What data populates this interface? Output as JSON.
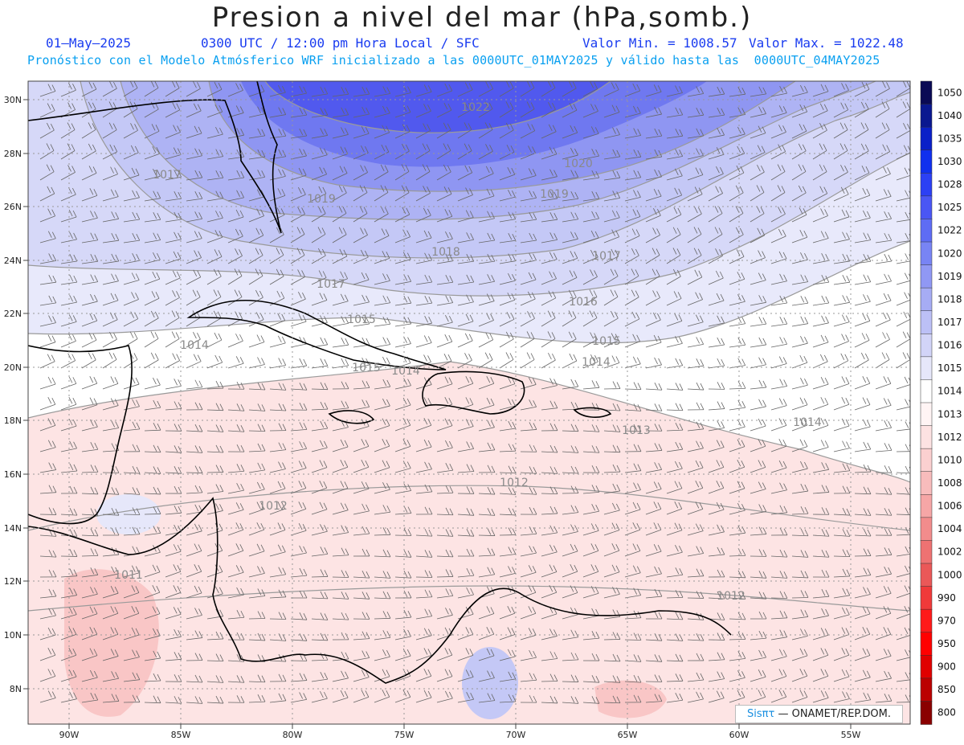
{
  "header": {
    "title": "Presion a nivel del mar (hPa,somb.)",
    "date": "01—May—2025",
    "time": "0300 UTC / 12:00 pm Hora Local / SFC",
    "min_label": "Valor Min. = 1008.57",
    "max_label": "Valor Max. = 1022.48",
    "model_info": "Pronóstico con el Modelo Atmósferico WRF inicializado a las 0000UTC_01MAY2025 y válido hasta las  0000UTC_04MAY2025"
  },
  "map": {
    "lon_labels": [
      "90W",
      "85W",
      "80W",
      "75W",
      "70W",
      "65W",
      "60W",
      "55W"
    ],
    "lat_labels": [
      "30N",
      "28N",
      "26N",
      "24N",
      "22N",
      "20N",
      "18N",
      "16N",
      "14N",
      "12N",
      "10N",
      "8N"
    ],
    "isobar_labels": [
      "1022",
      "1020",
      "1019",
      "1019",
      "1018",
      "1017",
      "1017",
      "1017",
      "1016",
      "1015",
      "1015",
      "1014",
      "1014",
      "1014",
      "1015",
      "1014",
      "1013",
      "1012",
      "1012",
      "1012",
      "1011"
    ]
  },
  "colorbar": {
    "levels": [
      "1050",
      "1040",
      "1035",
      "1030",
      "1028",
      "1025",
      "1022",
      "1020",
      "1019",
      "1018",
      "1017",
      "1016",
      "1015",
      "1014",
      "1013",
      "1012",
      "1010",
      "1008",
      "1006",
      "1004",
      "1002",
      "1000",
      "990",
      "970",
      "950",
      "900",
      "850",
      "800"
    ],
    "colors": [
      "#0a0a55",
      "#0a1890",
      "#0a20c8",
      "#1030ee",
      "#2c40f4",
      "#4a56f4",
      "#5e6cf4",
      "#7884f4",
      "#9098f4",
      "#a6acf4",
      "#bcc0f6",
      "#d2d4f8",
      "#e6e7fa",
      "#ffffff",
      "#fff4f4",
      "#fde2e2",
      "#fbd0d0",
      "#f8bcbc",
      "#f6a6a6",
      "#f28c8c",
      "#ee7272",
      "#ea5858",
      "#f03a3a",
      "#ff1a1a",
      "#ff0000",
      "#e00000",
      "#bb0000",
      "#8a0000"
    ]
  },
  "credit": {
    "brand": "Sisπτ",
    "text": "— ONAMET/REP.DOM."
  }
}
